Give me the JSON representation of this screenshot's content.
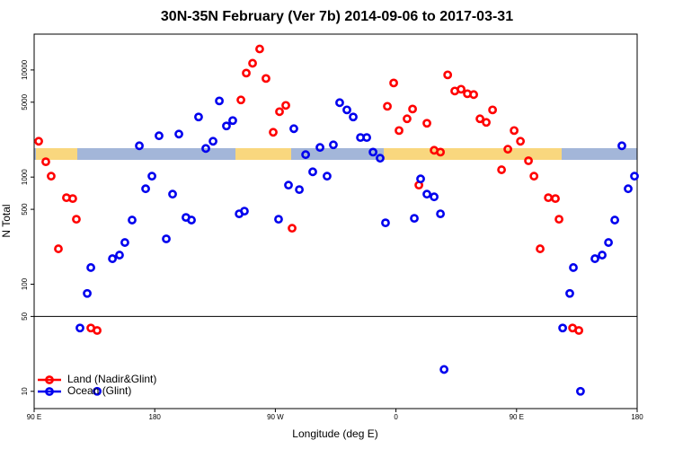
{
  "chart_data": {
    "type": "scatter",
    "title": "30N-35N February (Ver 7b)   2014-09-06 to 2017-03-31",
    "x_label": "Longitude (deg E)",
    "y_label": "N Total",
    "log_y": true,
    "legend": "bottom-left",
    "hline": 50,
    "xlim": [
      90,
      540
    ],
    "ylim": [
      6.9,
      21600
    ],
    "xticks": [
      {
        "value": 90,
        "label": "90 E"
      },
      180,
      {
        "value": 270,
        "label": "90 W"
      },
      {
        "value": 360,
        "label": "0"
      },
      {
        "value": 450,
        "label": "90 E"
      },
      {
        "value": 540,
        "label": "180"
      }
    ],
    "yticks": [
      10,
      50,
      100,
      500,
      1000,
      5000,
      10000
    ],
    "series": [
      {
        "name": "Land (Nadir&Glint)",
        "color": "#ff0000",
        "x": [
          93.4,
          98.7,
          102.7,
          108.1,
          114.1,
          118.8,
          121.5,
          132.3,
          137.0,
          244.3,
          248.3,
          253.0,
          258.3,
          263.0,
          268.4,
          273.1,
          277.8,
          282.5,
          353.6,
          358.3,
          362.3,
          368.3,
          372.4,
          377.1,
          383.1,
          388.5,
          393.2,
          398.6,
          403.9,
          408.6,
          413.3,
          418.0,
          422.7,
          427.4,
          432.1,
          438.8,
          443.5,
          448.2,
          452.9,
          458.9,
          463.0,
          467.6,
          473.7,
          479.0,
          481.7,
          491.8,
          496.5
        ],
        "values": [
          2160,
          1390,
          1020,
          214,
          642,
          630,
          404,
          39,
          37,
          5250,
          9350,
          11550,
          15700,
          8330,
          2620,
          4080,
          4670,
          333,
          4580,
          7560,
          2720,
          3500,
          4320,
          841,
          3180,
          1780,
          1710,
          9000,
          6360,
          6610,
          6000,
          5890,
          3500,
          3240,
          4240,
          1170,
          1820,
          2720,
          2160,
          1420,
          1020,
          214,
          642,
          630,
          404,
          39,
          37
        ]
      },
      {
        "name": "Ocean (Glint)",
        "color": "#0000ee",
        "x": [
          124.2,
          129.6,
          132.3,
          137.0,
          148.4,
          153.7,
          157.7,
          163.1,
          168.5,
          173.2,
          177.9,
          183.2,
          188.6,
          193.3,
          198.0,
          203.3,
          207.4,
          212.7,
          218.1,
          223.5,
          228.2,
          233.5,
          238.2,
          243.0,
          246.9,
          272.4,
          279.8,
          283.8,
          287.9,
          292.6,
          297.9,
          303.3,
          308.6,
          313.3,
          318.0,
          323.4,
          328.1,
          333.5,
          338.2,
          342.9,
          348.2,
          352.2,
          373.7,
          378.4,
          383.1,
          388.5,
          393.2,
          395.9,
          484.4,
          489.7,
          492.4,
          497.7,
          508.5,
          513.9,
          518.6,
          523.3,
          528.6,
          533.3,
          538.0
        ],
        "values": [
          39,
          82,
          143,
          10,
          173,
          187,
          245,
          397,
          1960,
          778,
          1020,
          2430,
          265,
          693,
          2520,
          420,
          397,
          3640,
          1850,
          2160,
          5140,
          3000,
          3370,
          454,
          481,
          404,
          841,
          2830,
          764,
          1620,
          1120,
          1890,
          1020,
          2000,
          4950,
          4240,
          3640,
          2340,
          2340,
          1710,
          1500,
          374,
          412,
          962,
          693,
          654,
          454,
          16,
          39,
          82,
          143,
          10,
          173,
          187,
          245,
          397,
          1960,
          778,
          1020
        ]
      }
    ]
  }
}
